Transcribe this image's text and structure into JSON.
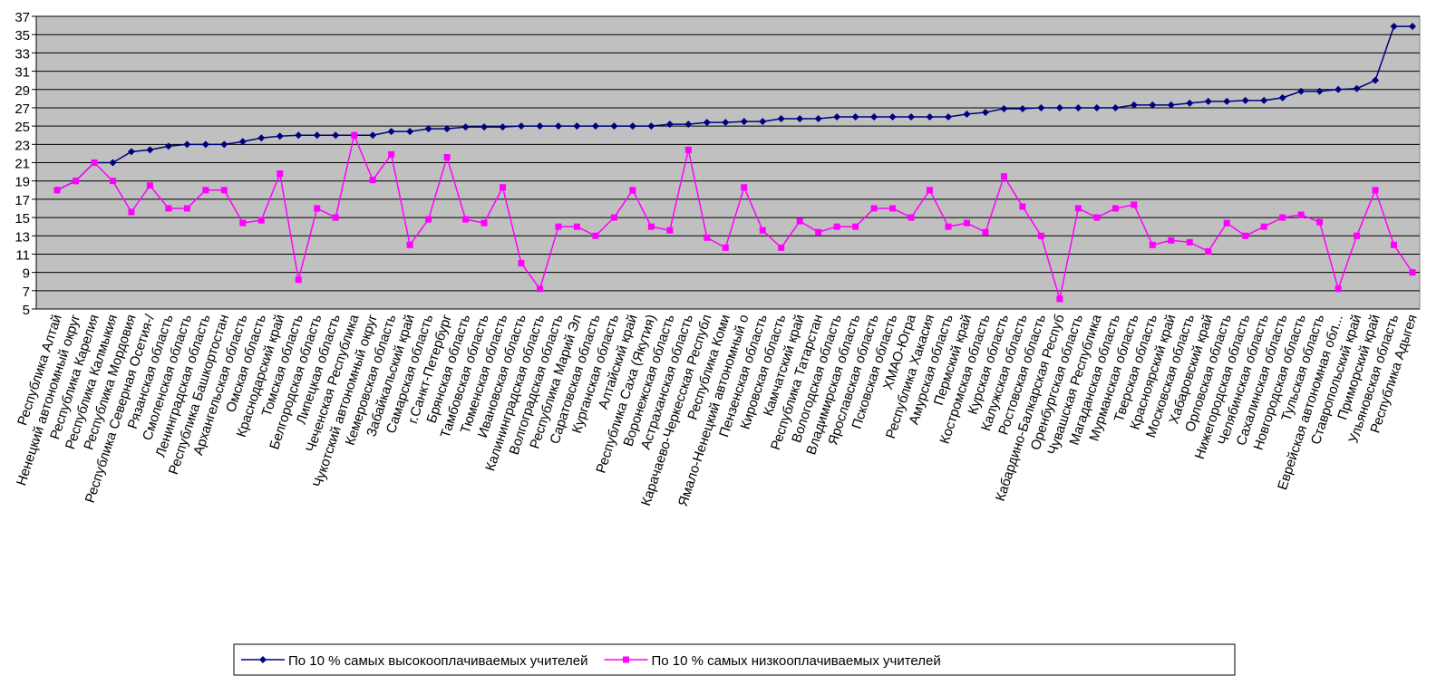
{
  "chart_data": {
    "type": "line",
    "categories": [
      "Республика Алтай",
      "Ненецкий автономный округ",
      "Республика Карелия",
      "Республика Калмыкия",
      "Республика Мордовия",
      "Республика Северная Осетия-/",
      "Рязанская область",
      "Смоленская область",
      "Ленинградская область",
      "Республика Башкортостан",
      "Архангельская область",
      "Омская область",
      "Краснодарский край",
      "Томская область",
      "Белгородская область",
      "Липецкая область",
      "Чеченская Республика",
      "Чукотский автономный округ",
      "Кемеровская область",
      "Забайкальский край",
      "Самарская область",
      "г.Санкт-Петербург",
      "Брянская область",
      "Тамбовская область",
      "Тюменская область",
      "Ивановская область",
      "Калининградская область",
      "Волгоградская область",
      "Республика Марий Эл",
      "Саратовская область",
      "Курганская область",
      "Алтайский край",
      "Республика Саха (Якутия)",
      "Воронежская область",
      "Астраханская область",
      "Карачаево-Черкесская Республ",
      "Республика Коми",
      "Ямало-Ненецкий автономный о",
      "Пензенская область",
      "Кировская область",
      "Камчатский край",
      "Республика Татарстан",
      "Вологодская область",
      "Владимирская область",
      "Ярославская область",
      "Псковская область",
      "ХМАО-Югра",
      "Республика Хакасия",
      "Амурская область",
      "Пермский край",
      "Костромская область",
      "Курская область",
      "Калужская область",
      "Ростовская область",
      "Кабардино-Балкарская Респуб",
      "Оренбургская область",
      "Чувашская Республика",
      "Магаданская область",
      "Мурманская область",
      "Тверская область",
      "Красноярский край",
      "Московская область",
      "Хабаровский край",
      "Орловская область",
      "Нижегородская область",
      "Челябинская область",
      "Сахалинская область",
      "Новгородская область",
      "Тульская область",
      "Еврейская автономная обл...",
      "Ставропольский край",
      "Приморский край",
      "Ульяновская область",
      "Республика Адыгея"
    ],
    "series": [
      {
        "name": "По 10 % самых высокооплачиваемых учителей",
        "color": "#000080",
        "marker": "diamond",
        "values": [
          18,
          19,
          21,
          21,
          22.2,
          22.4,
          22.8,
          23,
          23,
          23,
          23.3,
          23.7,
          23.9,
          24,
          24,
          24,
          24,
          24,
          24.4,
          24.4,
          24.7,
          24.7,
          24.9,
          24.9,
          24.9,
          25,
          25,
          25,
          25,
          25,
          25,
          25,
          25,
          25.2,
          25.2,
          25.4,
          25.4,
          25.5,
          25.5,
          25.8,
          25.8,
          25.8,
          26,
          26,
          26,
          26,
          26,
          26,
          26,
          26.3,
          26.5,
          26.9,
          26.9,
          27,
          27,
          27,
          27,
          27,
          27.3,
          27.3,
          27.3,
          27.5,
          27.7,
          27.7,
          27.8,
          27.8,
          28.1,
          28.8,
          28.8,
          29,
          29.1,
          30,
          35.9,
          35.9
        ]
      },
      {
        "name": "По 10 % самых низкооплачиваемых учителей",
        "color": "#ff00ff",
        "marker": "square",
        "values": [
          18,
          19,
          21,
          19,
          15.6,
          18.5,
          16,
          16,
          18,
          18,
          14.4,
          14.7,
          19.8,
          8.2,
          16,
          15,
          24,
          19.1,
          21.9,
          12,
          14.8,
          21.6,
          14.8,
          14.4,
          18.3,
          10,
          7.2,
          14,
          14,
          13,
          15,
          18,
          14,
          13.6,
          22.4,
          12.8,
          11.7,
          18.3,
          13.6,
          11.7,
          14.6,
          13.4,
          14,
          14,
          16,
          16,
          15,
          18,
          14,
          14.4,
          13.4,
          19.5,
          16.2,
          13,
          6.1,
          16,
          15,
          16,
          16.4,
          12,
          12.5,
          12.3,
          11.3,
          14.4,
          13,
          14,
          15,
          15.3,
          14.5,
          7.2,
          13,
          18,
          12,
          9
        ]
      }
    ],
    "ylim": [
      5,
      37
    ],
    "yticks": [
      5,
      7,
      9,
      11,
      13,
      15,
      17,
      19,
      21,
      23,
      25,
      27,
      29,
      31,
      33,
      35,
      37
    ],
    "grid": true,
    "plot_background": "#c0c0c0",
    "legend": "bottom"
  }
}
